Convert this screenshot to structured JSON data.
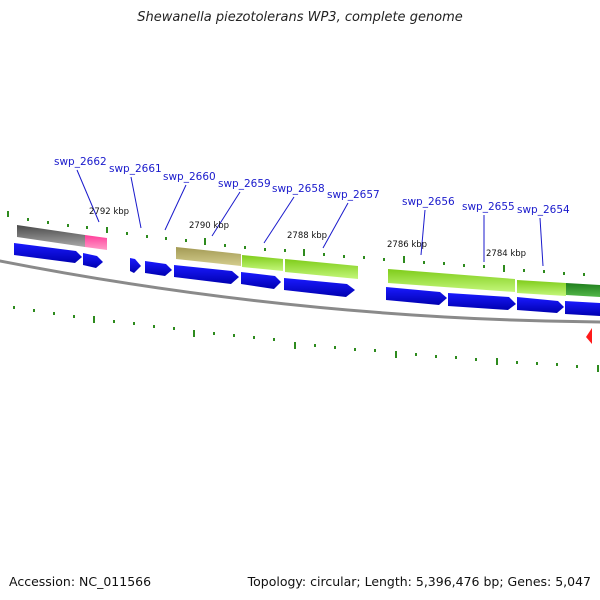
{
  "title": "Shewanella piezotolerans WP3, complete genome",
  "accession": "Accession: NC_011566",
  "summary": "Topology: circular; Length: 5,396,476 bp; Genes: 5,047",
  "colors": {
    "cds_arrow": "#0000ee",
    "backbone": "#777777",
    "tick": "#2e8b1e",
    "gene_label": "#1a1acc",
    "kbp_label": "#111111",
    "feature_gray": "#6e6e6e",
    "feature_pink": "#ff2d8c",
    "feature_olive": "#b8b06a",
    "feature_lime": "#a6ee2c",
    "feature_darkgreen": "#2e9a2a",
    "marker_red": "#ff1a1a"
  },
  "gene_labels": [
    "swp_2662",
    "swp_2661",
    "swp_2660",
    "swp_2659",
    "swp_2658",
    "swp_2657",
    "swp_2656",
    "swp_2655",
    "swp_2654"
  ],
  "kbp_labels": [
    "2792 kbp",
    "2790 kbp",
    "2788 kbp",
    "2786 kbp",
    "2784 kbp"
  ]
}
